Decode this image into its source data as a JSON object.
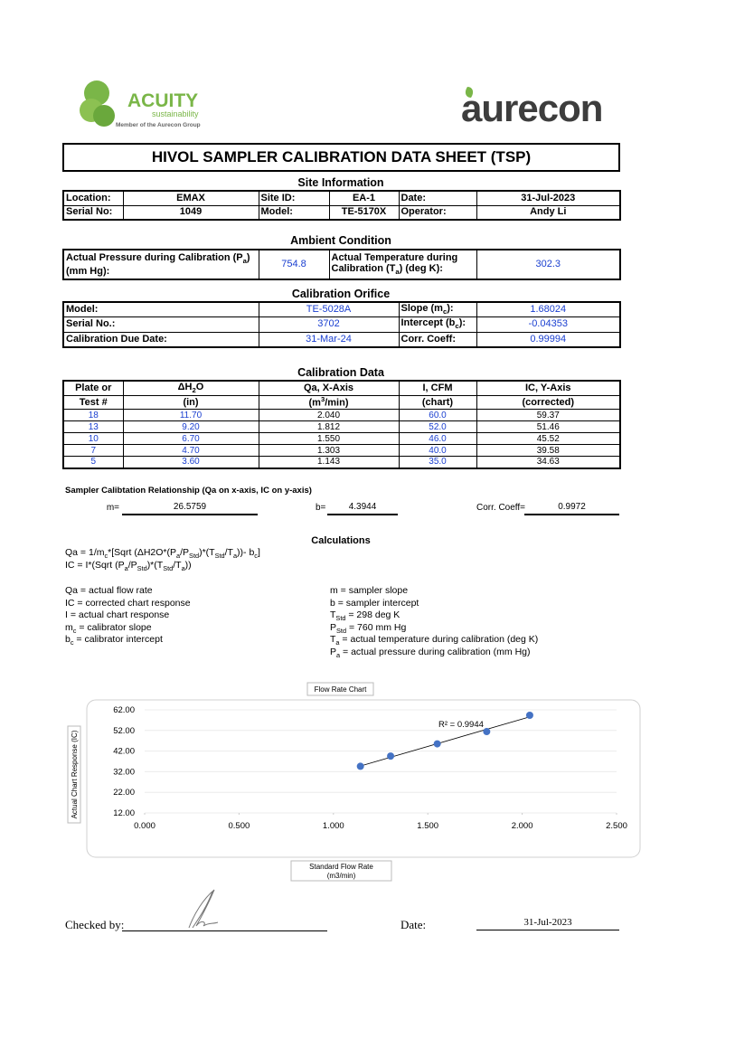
{
  "header": {
    "acuity": "ACUITY",
    "acuity_sub": "sustainability",
    "acuity_member": "Member of the Aurecon Group",
    "aurecon": "aurecon"
  },
  "title": "HIVOL SAMPLER CALIBRATION  DATA SHEET (TSP)",
  "site": {
    "heading": "Site Information",
    "rows": [
      [
        "Location:",
        "EMAX",
        "Site ID:",
        "EA-1",
        "Date:",
        "31-Jul-2023"
      ],
      [
        "Serial No:",
        "1049",
        "Model:",
        "TE-5170X",
        "Operator:",
        "Andy Li"
      ]
    ]
  },
  "ambient": {
    "heading": "Ambient Condition",
    "rows": [
      [
        [
          "Actual Pressure during Calibration (P",
          {
            "sub": "a"
          },
          ") (mm Hg):"
        ],
        "754.8",
        [
          "Actual Temperature during Calibration (T",
          {
            "sub": "a"
          },
          ") (deg K):"
        ],
        "302.3"
      ]
    ]
  },
  "orifice": {
    "heading": "Calibration Orifice",
    "rows": [
      [
        "Model:",
        "TE-5028A",
        [
          "Slope (m",
          {
            "sub": "c"
          },
          "):"
        ],
        "1.68024"
      ],
      [
        "Serial No.:",
        "3702",
        [
          "Intercept (b",
          {
            "sub": "c"
          },
          "):"
        ],
        "-0.04353"
      ],
      [
        "Calibration Due Date:",
        "31-Mar-24",
        "Corr. Coeff:",
        "0.99994"
      ]
    ]
  },
  "calibration": {
    "heading": "Calibration Data",
    "header": [
      [
        "Plate or",
        [
          "ΔH",
          {
            "sub": "2"
          },
          "O"
        ],
        "Qa, X-Axis",
        "I, CFM",
        "IC, Y-Axis"
      ],
      [
        "Test #",
        "(in)",
        [
          "(m",
          {
            "sup": "3"
          },
          "/min)"
        ],
        "(chart)",
        "(corrected)"
      ]
    ],
    "rows": [
      [
        "18",
        "11.70",
        "2.040",
        "60.0",
        "59.37"
      ],
      [
        "13",
        "9.20",
        "1.812",
        "52.0",
        "51.46"
      ],
      [
        "10",
        "6.70",
        "1.550",
        "46.0",
        "45.52"
      ],
      [
        "7",
        "4.70",
        "1.303",
        "40.0",
        "39.58"
      ],
      [
        "5",
        "3.60",
        "1.143",
        "35.0",
        "34.63"
      ]
    ]
  },
  "relationship": {
    "title": "Sampler Calibtation Relationship (Qa on x-axis, IC on y-axis)",
    "m_label": "m=",
    "m": "26.5759",
    "b_label": "b=",
    "b": "4.3944",
    "corr_label": "Corr. Coeff=",
    "corr": "0.9972"
  },
  "calculations": {
    "heading": "Calculations",
    "formulas": [
      [
        "Qa = 1/m",
        {
          "sub": "c"
        },
        "*[Sqrt (ΔH2O*(P",
        {
          "sub": "a"
        },
        "/P",
        {
          "sub": "Std"
        },
        ")*(T",
        {
          "sub": "Std"
        },
        "/T",
        {
          "sub": "a"
        },
        "))- b",
        {
          "sub": "c"
        },
        "]"
      ],
      [
        "IC = I*(Sqrt (P",
        {
          "sub": "a"
        },
        "/P",
        {
          "sub": "Std"
        },
        ")*(T",
        {
          "sub": "Std"
        },
        "/T",
        {
          "sub": "a"
        },
        "))"
      ]
    ],
    "left": [
      "Qa = actual flow rate",
      "IC = corrected chart response",
      "I = actual chart response",
      [
        "m",
        {
          "sub": "c"
        },
        "  = calibrator slope"
      ],
      [
        "b",
        {
          "sub": "c"
        },
        "  = calibrator intercept"
      ]
    ],
    "right": [
      "m = sampler slope",
      "b  = sampler intercept",
      [
        "T",
        {
          "sub": "Std"
        },
        " = 298 deg K"
      ],
      [
        "P",
        {
          "sub": "Std"
        },
        " = 760 mm Hg"
      ],
      [
        "T",
        {
          "sub": "a"
        },
        " = actual temperature during calibration (deg K)"
      ],
      [
        "P",
        {
          "sub": "a"
        },
        " = actual pressure during calibration (mm Hg)"
      ]
    ]
  },
  "chart_data": {
    "type": "scatter",
    "title": "Flow Rate Chart",
    "x_label": [
      "Standard Flow Rate",
      "(m3/min)"
    ],
    "y_label": "Actual Chart Response (IC)",
    "annotation": "R² = 0.9944",
    "x": [
      2.04,
      1.812,
      1.55,
      1.303,
      1.143
    ],
    "series": [
      {
        "values": [
          59.37,
          51.46,
          45.52,
          39.58,
          34.63
        ],
        "color": "#4472c4"
      }
    ],
    "trendline": true,
    "grid": true,
    "xlim": [
      0,
      2.5
    ],
    "xticks": [
      {
        "value": 0,
        "label": "0.000"
      },
      {
        "value": 0.5,
        "label": "0.500"
      },
      {
        "value": 1,
        "label": "1.000"
      },
      {
        "value": 1.5,
        "label": "1.500"
      },
      {
        "value": 2,
        "label": "2.000"
      },
      {
        "value": 2.5,
        "label": "2.500"
      }
    ],
    "ylim": [
      12,
      62
    ],
    "yticks": [
      {
        "value": 12,
        "label": "12.00"
      },
      {
        "value": 22,
        "label": "22.00"
      },
      {
        "value": 32,
        "label": "32.00"
      },
      {
        "value": 42,
        "label": "42.00"
      },
      {
        "value": 52,
        "label": "52.00"
      },
      {
        "value": 62,
        "label": "62.00"
      }
    ]
  },
  "footer": {
    "checked_label": "Checked by:",
    "date_label": "Date:",
    "date": "31-Jul-2023"
  }
}
